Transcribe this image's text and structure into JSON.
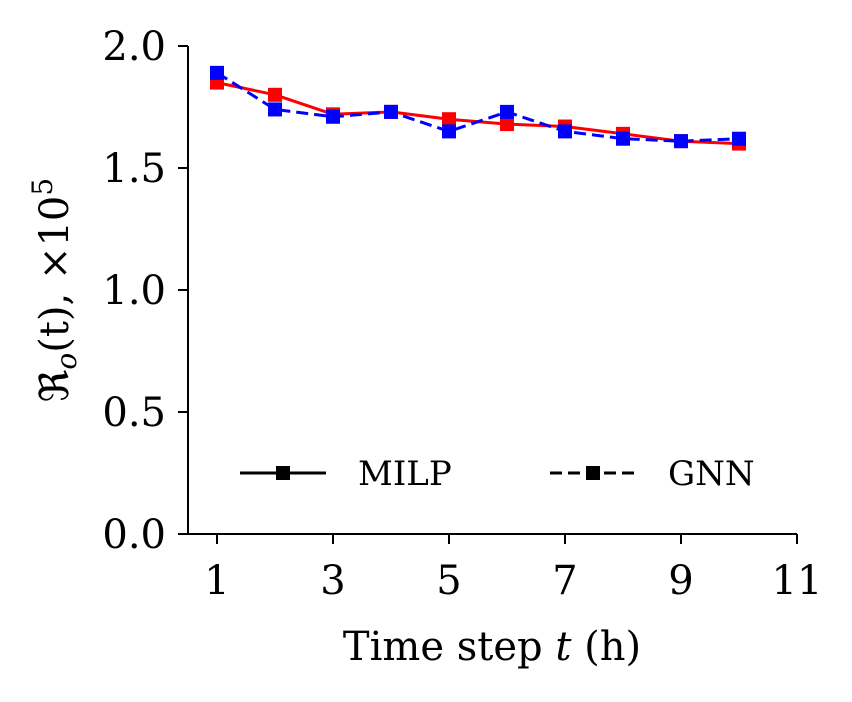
{
  "chart_data": {
    "type": "line",
    "title": "",
    "xlabel_prefix": "Time step ",
    "xlabel_var": "t",
    "xlabel_suffix": " (h)",
    "ylabel_prefix": "ℜ",
    "ylabel_sub": "o",
    "ylabel_mid": "(t), ×10",
    "ylabel_sup": "5",
    "xlim": [
      0.5,
      11
    ],
    "ylim": [
      0,
      2.0
    ],
    "xticks": [
      1,
      3,
      5,
      7,
      9,
      11
    ],
    "xtick_labels": [
      "1",
      "3",
      "5",
      "7",
      "9",
      "11"
    ],
    "yticks": [
      0.0,
      0.5,
      1.0,
      1.5,
      2.0
    ],
    "ytick_labels": [
      "0.0",
      "0.5",
      "1.0",
      "1.5",
      "2.0"
    ],
    "x": [
      1,
      2,
      3,
      4,
      5,
      6,
      7,
      8,
      9,
      10
    ],
    "series": [
      {
        "name": "MILP",
        "color": "#ff0000",
        "line_style": "solid",
        "marker": "square",
        "values": [
          1.85,
          1.8,
          1.72,
          1.73,
          1.7,
          1.68,
          1.67,
          1.64,
          1.61,
          1.6
        ]
      },
      {
        "name": "GNN",
        "color": "#0000ff",
        "line_style": "dashed",
        "marker": "square",
        "values": [
          1.89,
          1.74,
          1.71,
          1.73,
          1.65,
          1.73,
          1.65,
          1.62,
          1.61,
          1.62
        ]
      }
    ],
    "legend": {
      "placement": "lower-center",
      "columns": 2,
      "swatch_color": "#000000",
      "entries": [
        "MILP",
        "GNN"
      ]
    },
    "grid": false
  }
}
